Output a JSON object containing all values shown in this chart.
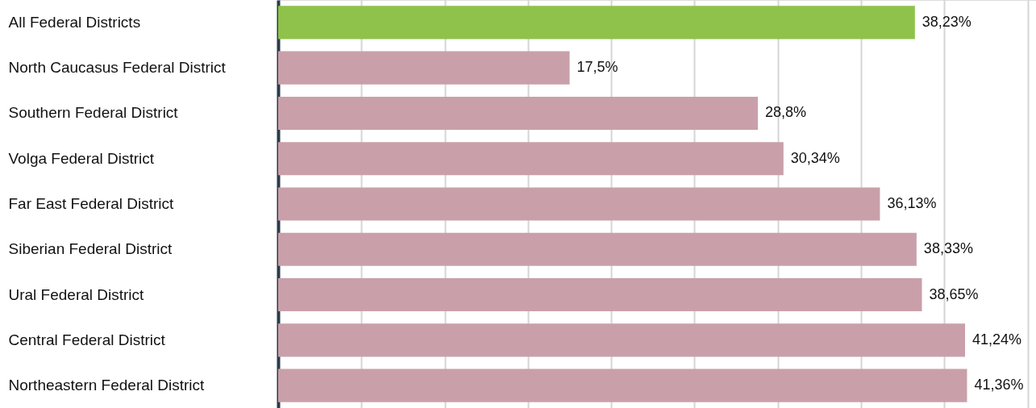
{
  "chart_data": {
    "type": "bar",
    "orientation": "horizontal",
    "relative": false,
    "categories": [
      "All Federal Districts",
      "North Caucasus Federal District",
      "Southern Federal District",
      "Volga Federal District",
      "Far East Federal District",
      "Siberian Federal District",
      "Ural Federal District",
      "Central Federal District",
      "Northeastern Federal District"
    ],
    "values": [
      38.23,
      17.5,
      28.8,
      30.34,
      36.13,
      38.33,
      38.65,
      41.24,
      41.36
    ],
    "value_labels": [
      "38,23%",
      "17,5%",
      "28,8%",
      "30,34%",
      "36,13%",
      "38,33%",
      "38,65%",
      "41,24%",
      "41,36%"
    ],
    "colors": [
      "#8fc24a",
      "#c9a0aa",
      "#c9a0aa",
      "#c9a0aa",
      "#c9a0aa",
      "#c9a0aa",
      "#c9a0aa",
      "#c9a0aa",
      "#c9a0aa"
    ],
    "xlim": [
      0,
      45.5
    ],
    "xticks": [
      {
        "value": 5,
        "label": null
      },
      {
        "value": 10,
        "label": null
      },
      {
        "value": 15,
        "label": null
      },
      {
        "value": 20,
        "label": null
      },
      {
        "value": 25,
        "label": null
      },
      {
        "value": 30,
        "label": null
      },
      {
        "value": 35,
        "label": null
      },
      {
        "value": 40,
        "label": null
      },
      {
        "value": 45,
        "label": null
      }
    ],
    "grid": "x",
    "tick_labels": "y"
  }
}
